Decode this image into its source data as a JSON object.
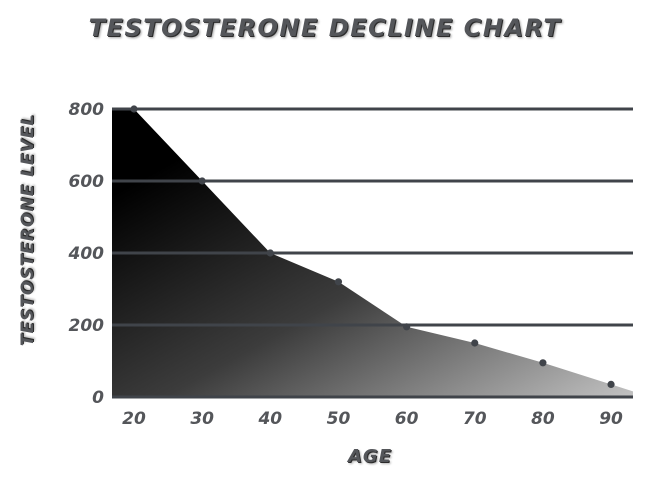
{
  "chart_data": {
    "type": "area",
    "title": "TESTOSTERONE DECLINE CHART",
    "xlabel": "AGE",
    "ylabel": "TESTOSTERONE LEVEL",
    "x": [
      20,
      30,
      40,
      50,
      60,
      70,
      80,
      90
    ],
    "xticks": [
      "20",
      "30",
      "40",
      "50",
      "60",
      "70",
      "80",
      "90"
    ],
    "yticks": [
      "0",
      "200",
      "400",
      "600",
      "800"
    ],
    "ylim": [
      0,
      800
    ],
    "series": [
      {
        "values": [
          800,
          600,
          400,
          320,
          195,
          150,
          95,
          35
        ]
      }
    ],
    "grid": true,
    "colors": {
      "fill_dark": "#000000",
      "fill_light": "#b8b8b8",
      "grid": "#40444a",
      "text": "#54565a"
    }
  }
}
